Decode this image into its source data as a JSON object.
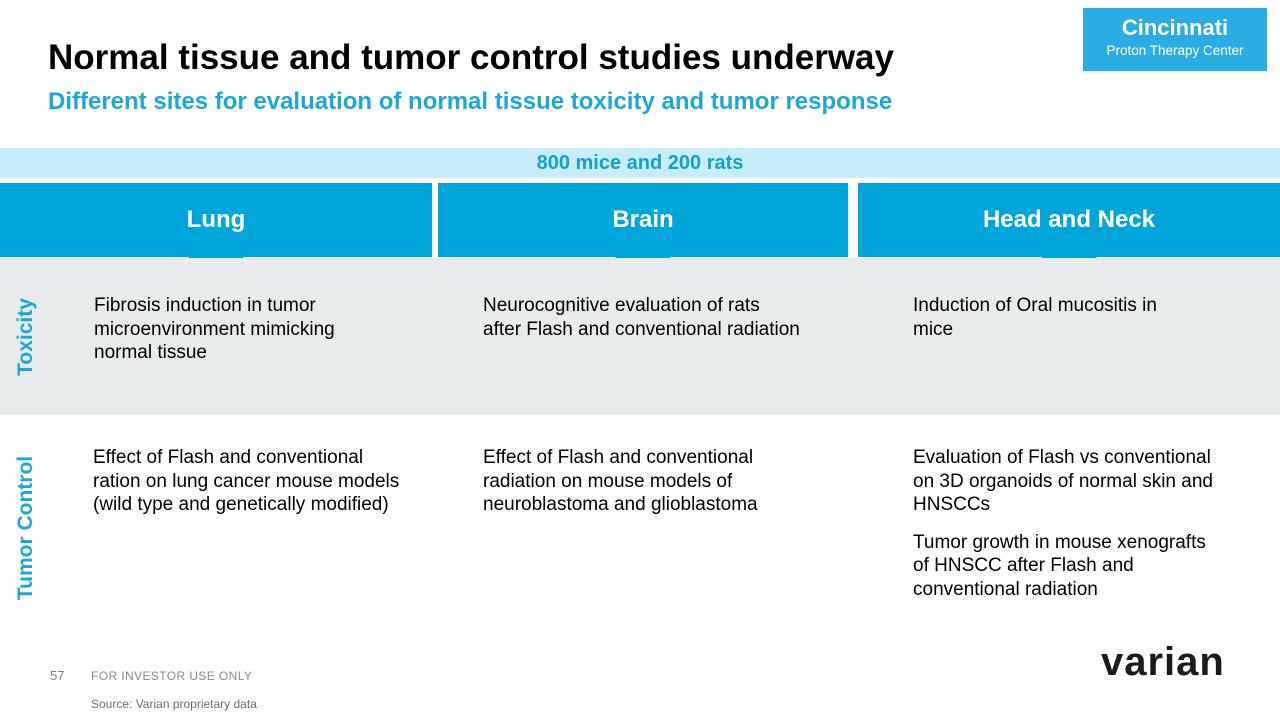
{
  "header": {
    "title": "Normal tissue and tumor control studies underway",
    "subtitle": "Different sites for evaluation of normal tissue toxicity and tumor response",
    "logo": {
      "line1": "Cincinnati",
      "line2": "Proton Therapy Center"
    }
  },
  "banner": {
    "text": "800 mice and 200 rats"
  },
  "row_labels": {
    "toxicity": "Toxicity",
    "tumor_control": "Tumor Control"
  },
  "columns": [
    {
      "header": "Lung",
      "toxicity": "Fibrosis induction in tumor microenvironment mimicking normal tissue",
      "tumor_control": [
        "Effect of Flash and conventional ration on lung cancer mouse models (wild type and genetically modified)"
      ]
    },
    {
      "header": "Brain",
      "toxicity": "Neurocognitive evaluation of rats after Flash and conventional radiation",
      "tumor_control": [
        "Effect of Flash and conventional radiation on mouse models of neuroblastoma and glioblastoma"
      ]
    },
    {
      "header": "Head and Neck",
      "toxicity": "Induction of Oral mucositis in mice",
      "tumor_control": [
        "Evaluation of Flash vs conventional on 3D organoids of normal skin and HNSCCs",
        "Tumor growth in mouse xenografts of HNSCC after Flash and conventional radiation"
      ]
    }
  ],
  "footer": {
    "page_number": "57",
    "classification": "FOR INVESTOR USE ONLY",
    "source": "Source:  Varian proprietary data",
    "brand": "varian"
  },
  "colors": {
    "accent_cyan": "#00a6d9",
    "logo_box_cyan": "#2bace2",
    "banner_bg": "#c8edfa",
    "banner_text": "#14a0d2",
    "label_cyan": "#1ba8d8",
    "band_gray": "#e8ebec",
    "footer_gray": "#8a8a8a",
    "brand_dark": "#1b1b1b"
  }
}
